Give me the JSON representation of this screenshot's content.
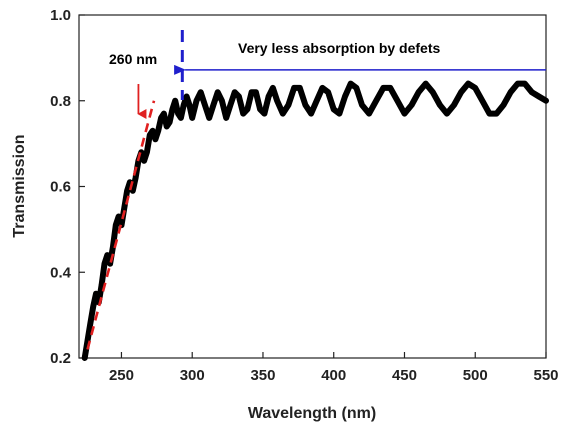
{
  "chart_data": {
    "type": "line",
    "title": "",
    "xlabel": "Wavelength (nm)",
    "ylabel": "Transmission",
    "xlim": [
      220,
      550
    ],
    "ylim": [
      0.2,
      1.0
    ],
    "x_ticks": [
      250,
      300,
      350,
      400,
      450,
      500,
      550
    ],
    "y_ticks": [
      0.2,
      0.4,
      0.6,
      0.8,
      1.0
    ],
    "y_tick_labels": [
      "0.2",
      "0.4",
      "0.6",
      "0.8",
      "1.0"
    ],
    "grid": false,
    "series": [
      {
        "color": "#000000",
        "x": [
          224,
          226,
          228,
          230,
          232,
          234,
          236,
          238,
          240,
          242,
          244,
          246,
          248,
          250,
          252,
          254,
          256,
          258,
          260,
          262,
          264,
          266,
          268,
          270,
          272,
          274,
          276,
          278,
          280,
          282,
          284,
          286,
          288,
          290,
          292,
          294,
          296,
          298,
          300,
          303,
          306,
          309,
          312,
          315,
          318,
          321,
          324,
          327,
          330,
          333,
          336,
          339,
          342,
          345,
          348,
          351,
          354,
          357,
          360,
          364,
          368,
          372,
          376,
          380,
          384,
          388,
          392,
          396,
          400,
          404,
          408,
          412,
          416,
          420,
          425,
          430,
          435,
          440,
          445,
          450,
          455,
          460,
          465,
          470,
          475,
          480,
          485,
          490,
          495,
          500,
          505,
          510,
          515,
          520,
          525,
          530,
          535,
          540,
          545,
          550
        ],
        "y": [
          0.2,
          0.24,
          0.28,
          0.32,
          0.35,
          0.33,
          0.37,
          0.42,
          0.44,
          0.42,
          0.46,
          0.51,
          0.53,
          0.51,
          0.55,
          0.59,
          0.61,
          0.59,
          0.62,
          0.66,
          0.68,
          0.66,
          0.68,
          0.72,
          0.73,
          0.71,
          0.73,
          0.76,
          0.77,
          0.74,
          0.75,
          0.78,
          0.8,
          0.77,
          0.76,
          0.79,
          0.81,
          0.79,
          0.76,
          0.8,
          0.82,
          0.79,
          0.76,
          0.79,
          0.82,
          0.8,
          0.76,
          0.79,
          0.82,
          0.81,
          0.77,
          0.78,
          0.82,
          0.82,
          0.78,
          0.77,
          0.81,
          0.83,
          0.8,
          0.77,
          0.79,
          0.83,
          0.83,
          0.79,
          0.77,
          0.8,
          0.83,
          0.82,
          0.78,
          0.77,
          0.81,
          0.84,
          0.83,
          0.79,
          0.77,
          0.8,
          0.83,
          0.83,
          0.8,
          0.77,
          0.79,
          0.82,
          0.84,
          0.82,
          0.79,
          0.77,
          0.79,
          0.82,
          0.84,
          0.83,
          0.8,
          0.77,
          0.77,
          0.79,
          0.82,
          0.84,
          0.84,
          0.82,
          0.81,
          0.8
        ]
      }
    ],
    "fit_line": {
      "color": "#e02020",
      "style": "dashed",
      "x": [
        226,
        273
      ],
      "y": [
        0.22,
        0.8
      ]
    },
    "annotations": [
      {
        "text": "260 nm",
        "color": "#000000"
      },
      {
        "text": "Very less absorption by defets",
        "color": "#000000"
      }
    ],
    "markers": [
      {
        "type": "arrow-down",
        "x": 262,
        "color": "#e02020"
      },
      {
        "type": "vertical-dashed",
        "x": 293,
        "color": "#1f1fcc"
      },
      {
        "type": "arrow-left",
        "x_from": 550,
        "x_to": 295,
        "y": 0.872,
        "color": "#1f1fcc"
      }
    ]
  }
}
